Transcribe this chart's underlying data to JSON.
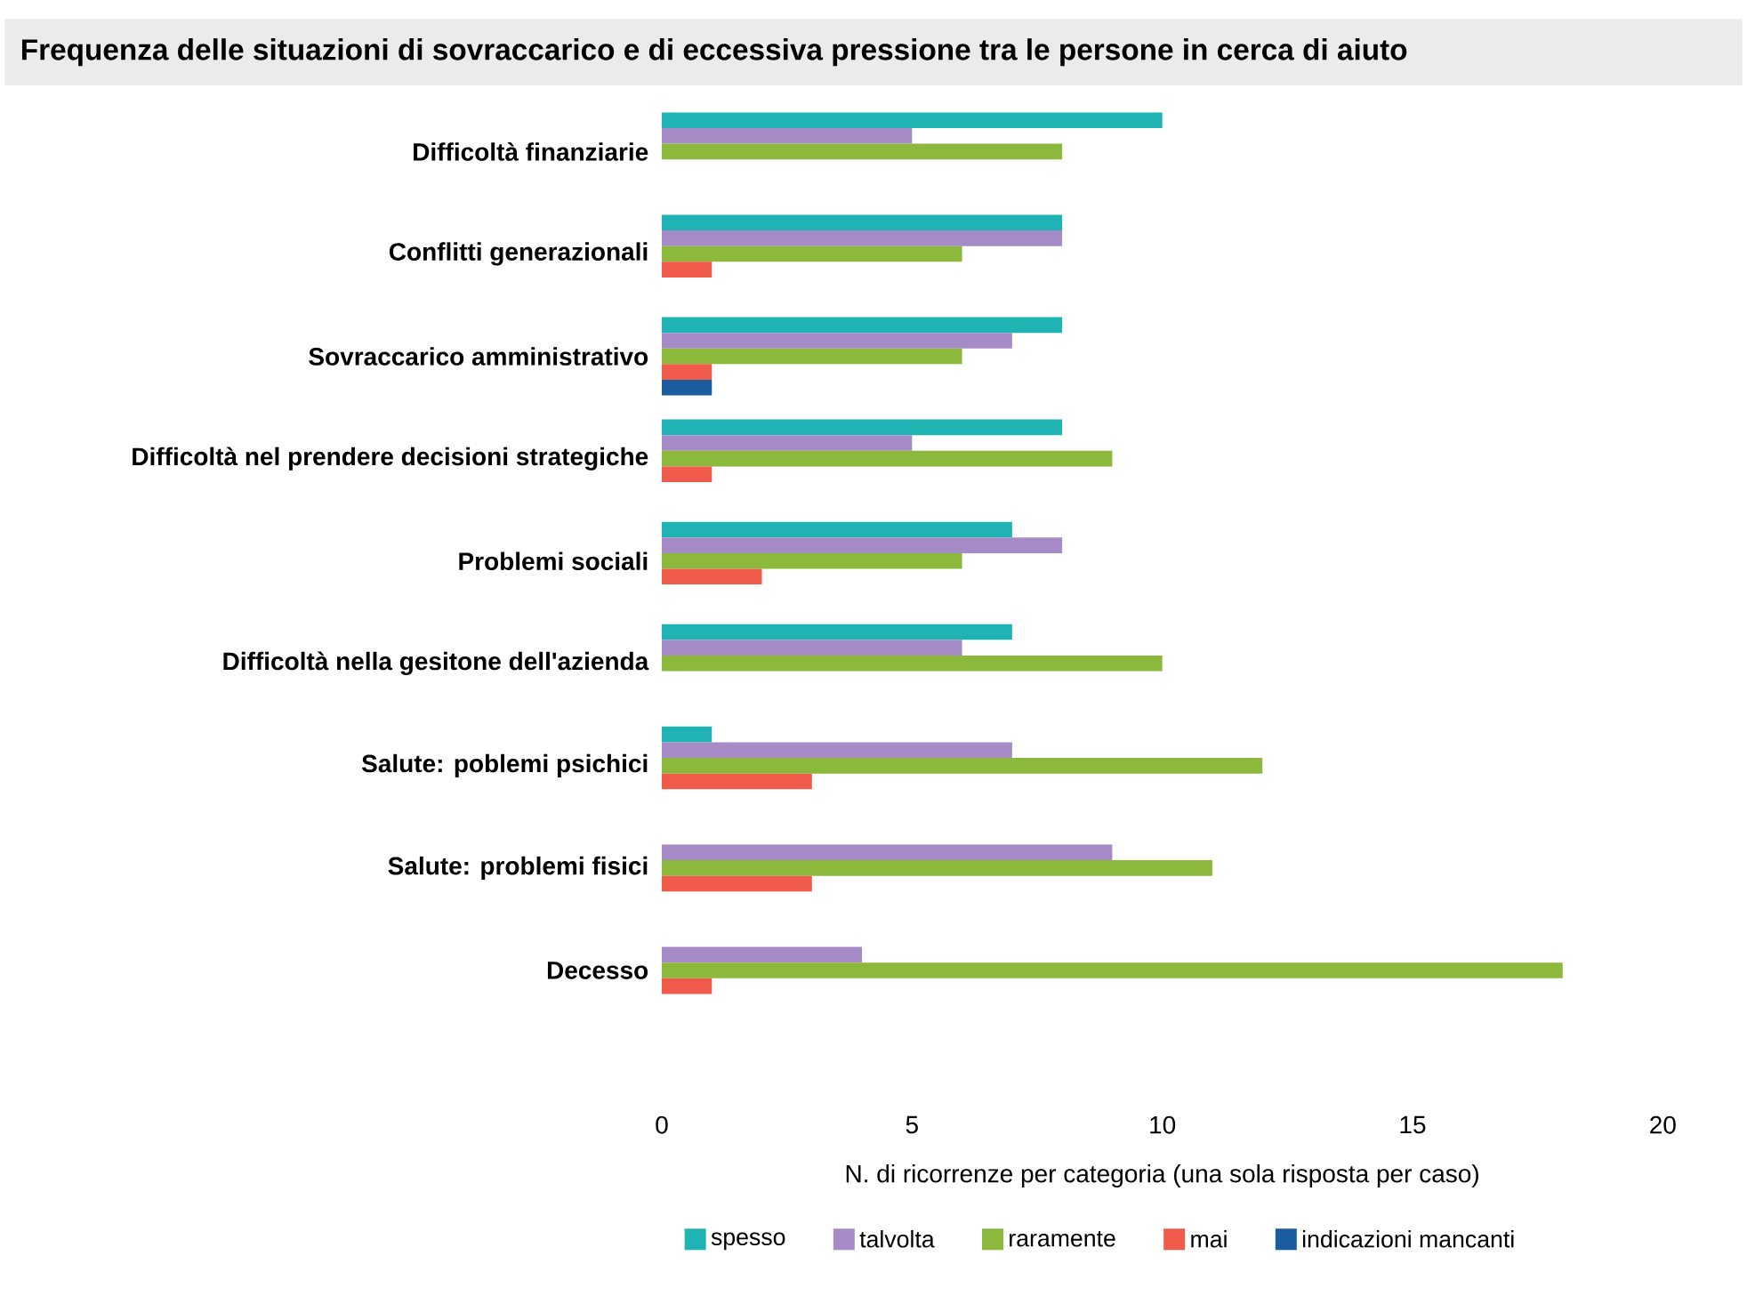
{
  "chart_data": {
    "type": "bar",
    "orientation": "horizontal",
    "title": "Frequenza delle situazioni di sovraccarico e di eccessiva pressione tra le persone in cerca di aiuto",
    "xlabel": "N. di ricorrenze per categoria (una sola risposta per caso)",
    "categories": [
      "Difficoltà finanziarie",
      "Conflitti generazionali",
      "Sovraccarico  amministrativo",
      "Difficoltà nel prendere decisioni strategiche",
      "Problemi sociali",
      "Difficoltà nella gesitone dell'azienda",
      "Salute: poblemi  psichici",
      "Salute: problemi  fisici",
      "Decesso"
    ],
    "series": [
      {
        "name": "spesso",
        "color": "#1fb3b3",
        "values": [
          10,
          8,
          8,
          8,
          7,
          7,
          1,
          0,
          0
        ]
      },
      {
        "name": "talvolta",
        "color": "#a58cc6",
        "values": [
          5,
          8,
          7,
          5,
          8,
          6,
          7,
          9,
          4
        ]
      },
      {
        "name": "raramente",
        "color": "#8cb83c",
        "values": [
          8,
          6,
          6,
          9,
          6,
          10,
          12,
          11,
          18
        ]
      },
      {
        "name": "mai",
        "color": "#ef5a4b",
        "values": [
          0,
          1,
          1,
          1,
          2,
          0,
          3,
          3,
          1
        ]
      },
      {
        "name": "indicazioni mancanti",
        "color": "#1b5c9e",
        "values": [
          0,
          0,
          1,
          0,
          0,
          0,
          0,
          0,
          0
        ]
      }
    ],
    "xlim": [
      0,
      20
    ],
    "xticks": [
      0,
      5,
      10,
      15,
      20
    ],
    "legend": "bottom"
  }
}
